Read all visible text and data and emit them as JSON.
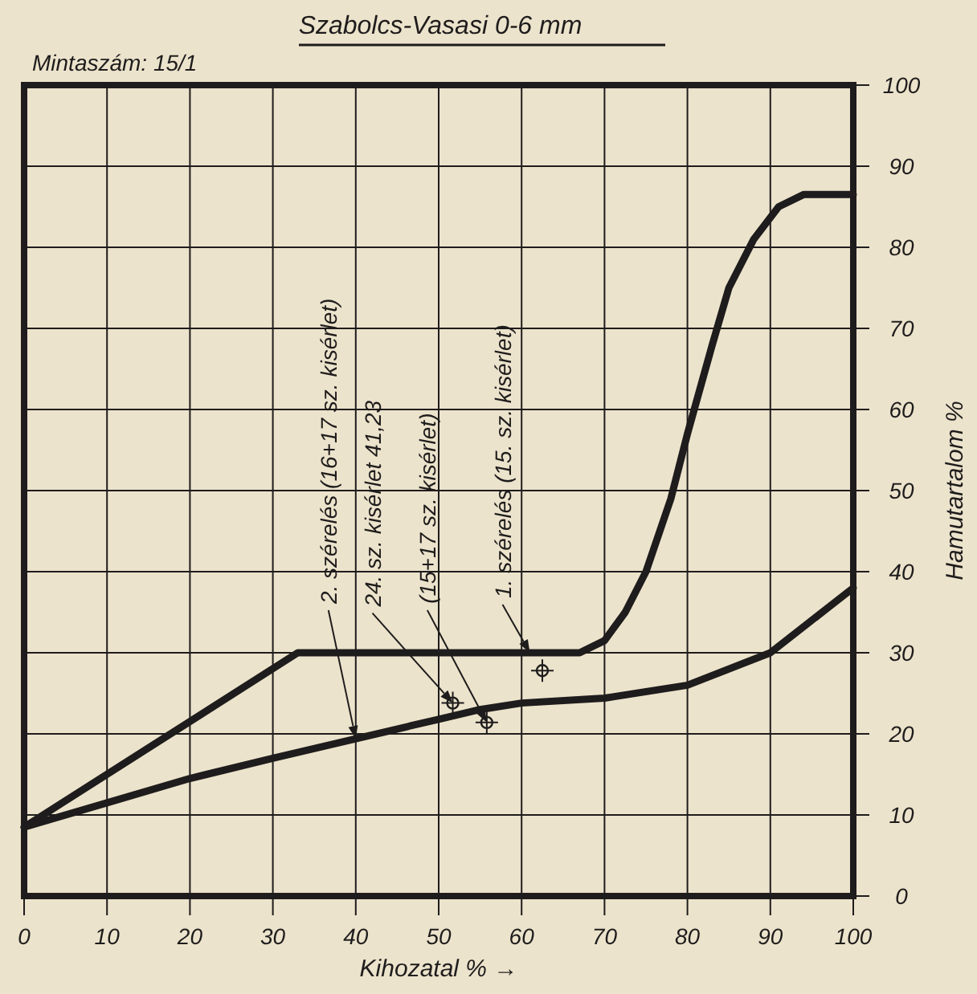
{
  "chart_data": {
    "type": "line",
    "title": "Szabolcs-Vasasi 0-6 mm",
    "subtitle": "Mintaszám: 15/1",
    "xlabel": "Kihozatal % →",
    "ylabel": "Hamutartalom %",
    "xlim": [
      0,
      100
    ],
    "xticks": [
      0,
      10,
      20,
      30,
      40,
      50,
      60,
      70,
      80,
      90,
      100
    ],
    "ylim": [
      0,
      100
    ],
    "yticks": [
      0,
      10,
      20,
      30,
      40,
      50,
      60,
      70,
      80,
      90,
      100
    ],
    "grid": true,
    "series": [
      {
        "color": "#1e1c1c",
        "x": [
          0,
          33,
          67,
          70,
          72.5,
          75,
          78,
          80,
          83,
          85,
          88,
          91,
          94,
          100
        ],
        "values": [
          8.5,
          30,
          30,
          31.5,
          35,
          40,
          49,
          57,
          68,
          75,
          81,
          85,
          86.5,
          86.5
        ]
      },
      {
        "color": "#1e1c1c",
        "x": [
          0,
          10,
          20,
          30,
          40,
          50,
          55,
          60,
          70,
          80,
          90,
          100
        ],
        "values": [
          8.5,
          11.5,
          14.5,
          17,
          19.4,
          21.8,
          23,
          23.8,
          24.4,
          26,
          30,
          38
        ]
      },
      {
        "type": "scatter",
        "marker": "circle",
        "color": "#1e1c1c",
        "x": [
          51.7,
          55.8,
          62.5
        ],
        "values": [
          23.8,
          21.4,
          27.8
        ]
      }
    ],
    "annotations": [
      {
        "text": "2. szérelés (16+17 sz. kisérlet)",
        "x": 40,
        "y": 19.4
      },
      {
        "text": "24. sz. kisérlet 41,23",
        "x": 51.7,
        "y": 23.8
      },
      {
        "text": "(15+17 sz. kisérlet)",
        "x": 55.8,
        "y": 21.4
      },
      {
        "text": "1. szérelés (15. sz. kisérlet)",
        "x": 61,
        "y": 30
      }
    ]
  }
}
